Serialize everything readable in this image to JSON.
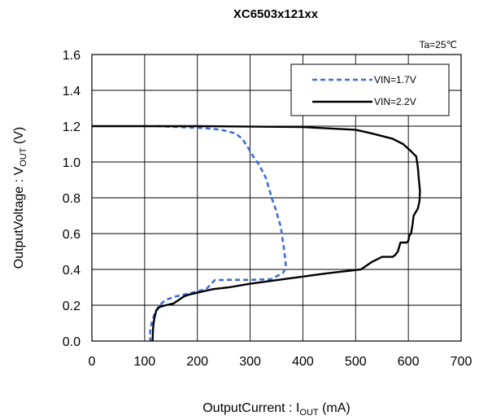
{
  "chart_data": {
    "type": "line",
    "title": "XC6503x121xx",
    "annotation": "Ta=25℃",
    "xlabel": {
      "prefix": "OutputCurrent : I",
      "sub": "OUT",
      "suffix": " (mA)"
    },
    "ylabel": {
      "prefix": "OutputVoltage : V",
      "sub": "OUT",
      "suffix": " (V)"
    },
    "xlim": [
      0,
      700
    ],
    "ylim": [
      0.0,
      1.6
    ],
    "x_ticks": [
      "0",
      "100",
      "200",
      "300",
      "400",
      "500",
      "600",
      "700"
    ],
    "y_ticks": [
      "0.0",
      "0.2",
      "0.4",
      "0.6",
      "0.8",
      "1.0",
      "1.2",
      "1.4",
      "1.6"
    ],
    "grid": true,
    "legend_position": "top-right",
    "series": [
      {
        "name": "VIN=1.7V",
        "style": "dashed",
        "color": "#3b6fd6",
        "points": [
          [
            123,
            1.2
          ],
          [
            210,
            1.19
          ],
          [
            245,
            1.18
          ],
          [
            272,
            1.16
          ],
          [
            285,
            1.13
          ],
          [
            296,
            1.08
          ],
          [
            306,
            1.03
          ],
          [
            318,
            0.98
          ],
          [
            330,
            0.91
          ],
          [
            337,
            0.84
          ],
          [
            342,
            0.79
          ],
          [
            348,
            0.74
          ],
          [
            353,
            0.69
          ],
          [
            358,
            0.64
          ],
          [
            361,
            0.58
          ],
          [
            364,
            0.52
          ],
          [
            366,
            0.47
          ],
          [
            368,
            0.41
          ],
          [
            362,
            0.38
          ],
          [
            340,
            0.346
          ],
          [
            300,
            0.342
          ],
          [
            260,
            0.342
          ],
          [
            233,
            0.34
          ],
          [
            226,
            0.32
          ],
          [
            217,
            0.29
          ],
          [
            190,
            0.27
          ],
          [
            160,
            0.25
          ],
          [
            140,
            0.23
          ],
          [
            128,
            0.2
          ],
          [
            120,
            0.16
          ],
          [
            115,
            0.12
          ],
          [
            111,
            0.07
          ],
          [
            110,
            0.03
          ],
          [
            111,
            0.0
          ]
        ]
      },
      {
        "name": "VIN=2.2V",
        "style": "solid",
        "color": "#000000",
        "points": [
          [
            0,
            1.2
          ],
          [
            200,
            1.2
          ],
          [
            400,
            1.195
          ],
          [
            500,
            1.18
          ],
          [
            530,
            1.16
          ],
          [
            570,
            1.13
          ],
          [
            590,
            1.1
          ],
          [
            605,
            1.06
          ],
          [
            615,
            1.03
          ],
          [
            618,
            0.97
          ],
          [
            620,
            0.9
          ],
          [
            622,
            0.84
          ],
          [
            621,
            0.78
          ],
          [
            618,
            0.74
          ],
          [
            614,
            0.72
          ],
          [
            610,
            0.7
          ],
          [
            608,
            0.65
          ],
          [
            605,
            0.6
          ],
          [
            602,
            0.59
          ],
          [
            600,
            0.56
          ],
          [
            597,
            0.55
          ],
          [
            585,
            0.55
          ],
          [
            580,
            0.5
          ],
          [
            575,
            0.48
          ],
          [
            570,
            0.47
          ],
          [
            550,
            0.47
          ],
          [
            530,
            0.44
          ],
          [
            510,
            0.4
          ],
          [
            450,
            0.38
          ],
          [
            400,
            0.36
          ],
          [
            350,
            0.34
          ],
          [
            300,
            0.32
          ],
          [
            260,
            0.3
          ],
          [
            230,
            0.29
          ],
          [
            200,
            0.27
          ],
          [
            185,
            0.26
          ],
          [
            175,
            0.25
          ],
          [
            165,
            0.23
          ],
          [
            155,
            0.21
          ],
          [
            140,
            0.2
          ],
          [
            128,
            0.19
          ],
          [
            122,
            0.17
          ],
          [
            118,
            0.12
          ],
          [
            116,
            0.07
          ],
          [
            115,
            0.0
          ]
        ]
      }
    ]
  }
}
